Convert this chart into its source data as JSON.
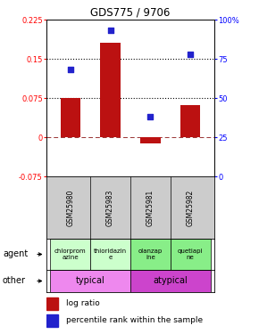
{
  "title": "GDS775 / 9706",
  "samples": [
    "GSM25980",
    "GSM25983",
    "GSM25981",
    "GSM25982"
  ],
  "log_ratio": [
    0.075,
    0.18,
    -0.012,
    0.062
  ],
  "percentile_rank_pct": [
    68,
    93,
    38,
    78
  ],
  "ylim_left": [
    -0.075,
    0.225
  ],
  "ylim_right": [
    0,
    100
  ],
  "yticks_left": [
    -0.075,
    0,
    0.075,
    0.15,
    0.225
  ],
  "yticks_right": [
    0,
    25,
    50,
    75,
    100
  ],
  "hlines": [
    0.075,
    0.15
  ],
  "bar_color": "#bb1111",
  "dot_color": "#2222cc",
  "agent_labels": [
    "chlorprom\nazine",
    "thioridazin\ne",
    "olanzap\nine",
    "quetiapi\nne"
  ],
  "agent_bg_left": "#ccffcc",
  "agent_bg_right": "#88ee88",
  "other_left_label": "typical",
  "other_right_label": "atypical",
  "other_left_color": "#ee88ee",
  "other_right_color": "#cc44cc",
  "gsm_bg": "#cccccc",
  "legend_bar_color": "#bb1111",
  "legend_dot_color": "#2222cc"
}
